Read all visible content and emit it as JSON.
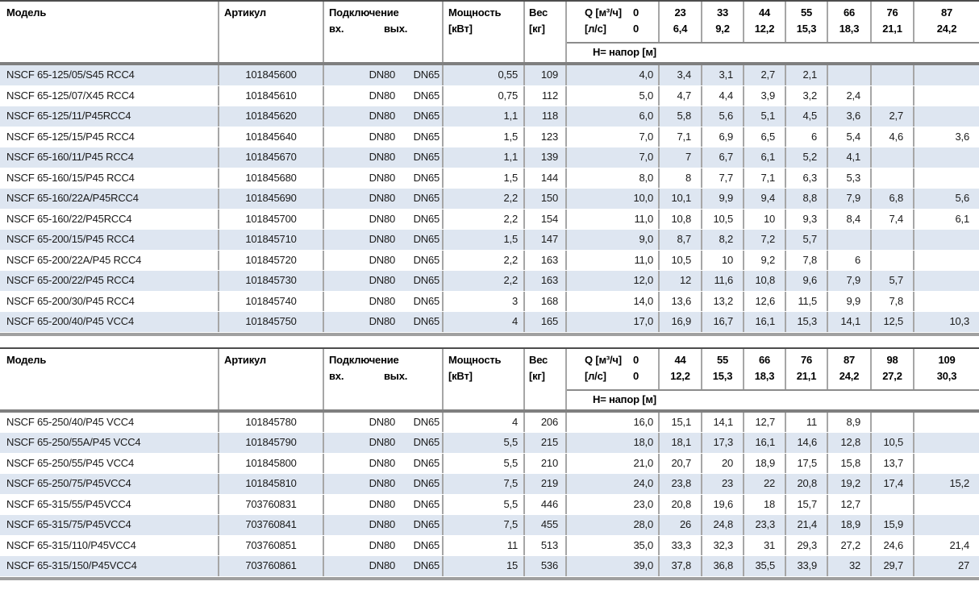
{
  "colors": {
    "row_alt_blue": "#dee6f1",
    "grid_line_gray": "#a6a6a6",
    "header_top_border": "#4d4d4d",
    "header_bottom_border": "#7f7f7f",
    "table_bottom_border": "#a0a0a0"
  },
  "tables": [
    {
      "headers": {
        "model": "Модель",
        "article": "Артикул",
        "connection": "Подключение",
        "conn_in": "вх.",
        "conn_out": "вых.",
        "power_line1": "Мощность",
        "power_line2": "[кВт]",
        "weight_line1": "Вес",
        "weight_line2": "[кг]",
        "q_line1_label": "Q [м³/ч]",
        "q_line1_value": "0",
        "q_line2_label": "[л/с]",
        "q_line2_value": "0",
        "head_label": "Н= напор [м]",
        "q_m3h": [
          "23",
          "33",
          "44",
          "55",
          "66",
          "76",
          "87"
        ],
        "q_ls": [
          "6,4",
          "9,2",
          "12,2",
          "15,3",
          "18,3",
          "21,1",
          "24,2"
        ]
      },
      "rows": [
        {
          "model": "NSCF 65-125/05/S45 RCC4",
          "article": "101845600",
          "conn_in": "DN80",
          "conn_out": "DN65",
          "power": "0,55",
          "weight": "109",
          "h": [
            "4,0",
            "3,4",
            "3,1",
            "2,7",
            "2,1",
            "",
            "",
            ""
          ]
        },
        {
          "model": "NSCF 65-125/07/X45 RCC4",
          "article": "101845610",
          "conn_in": "DN80",
          "conn_out": "DN65",
          "power": "0,75",
          "weight": "112",
          "h": [
            "5,0",
            "4,7",
            "4,4",
            "3,9",
            "3,2",
            "2,4",
            "",
            ""
          ]
        },
        {
          "model": "NSCF 65-125/11/P45RCC4",
          "article": "101845620",
          "conn_in": "DN80",
          "conn_out": "DN65",
          "power": "1,1",
          "weight": "118",
          "h": [
            "6,0",
            "5,8",
            "5,6",
            "5,1",
            "4,5",
            "3,6",
            "2,7",
            ""
          ]
        },
        {
          "model": "NSCF 65-125/15/P45 RCC4",
          "article": "101845640",
          "conn_in": "DN80",
          "conn_out": "DN65",
          "power": "1,5",
          "weight": "123",
          "h": [
            "7,0",
            "7,1",
            "6,9",
            "6,5",
            "6",
            "5,4",
            "4,6",
            "3,6"
          ]
        },
        {
          "model": "NSCF 65-160/11/P45 RCC4",
          "article": "101845670",
          "conn_in": "DN80",
          "conn_out": "DN65",
          "power": "1,1",
          "weight": "139",
          "h": [
            "7,0",
            "7",
            "6,7",
            "6,1",
            "5,2",
            "4,1",
            "",
            ""
          ]
        },
        {
          "model": "NSCF 65-160/15/P45 RCC4",
          "article": "101845680",
          "conn_in": "DN80",
          "conn_out": "DN65",
          "power": "1,5",
          "weight": "144",
          "h": [
            "8,0",
            "8",
            "7,7",
            "7,1",
            "6,3",
            "5,3",
            "",
            ""
          ]
        },
        {
          "model": "NSCF 65-160/22A/P45RCC4",
          "article": "101845690",
          "conn_in": "DN80",
          "conn_out": "DN65",
          "power": "2,2",
          "weight": "150",
          "h": [
            "10,0",
            "10,1",
            "9,9",
            "9,4",
            "8,8",
            "7,9",
            "6,8",
            "5,6"
          ]
        },
        {
          "model": "NSCF 65-160/22/P45RCC4",
          "article": "101845700",
          "conn_in": "DN80",
          "conn_out": "DN65",
          "power": "2,2",
          "weight": "154",
          "h": [
            "11,0",
            "10,8",
            "10,5",
            "10",
            "9,3",
            "8,4",
            "7,4",
            "6,1"
          ]
        },
        {
          "model": "NSCF 65-200/15/P45 RCC4",
          "article": "101845710",
          "conn_in": "DN80",
          "conn_out": "DN65",
          "power": "1,5",
          "weight": "147",
          "h": [
            "9,0",
            "8,7",
            "8,2",
            "7,2",
            "5,7",
            "",
            "",
            ""
          ]
        },
        {
          "model": "NSCF 65-200/22A/P45 RCC4",
          "article": "101845720",
          "conn_in": "DN80",
          "conn_out": "DN65",
          "power": "2,2",
          "weight": "163",
          "h": [
            "11,0",
            "10,5",
            "10",
            "9,2",
            "7,8",
            "6",
            "",
            ""
          ]
        },
        {
          "model": "NSCF 65-200/22/P45 RCC4",
          "article": "101845730",
          "conn_in": "DN80",
          "conn_out": "DN65",
          "power": "2,2",
          "weight": "163",
          "h": [
            "12,0",
            "12",
            "11,6",
            "10,8",
            "9,6",
            "7,9",
            "5,7",
            ""
          ]
        },
        {
          "model": "NSCF 65-200/30/P45 RCC4",
          "article": "101845740",
          "conn_in": "DN80",
          "conn_out": "DN65",
          "power": "3",
          "weight": "168",
          "h": [
            "14,0",
            "13,6",
            "13,2",
            "12,6",
            "11,5",
            "9,9",
            "7,8",
            ""
          ]
        },
        {
          "model": "NSCF 65-200/40/P45 VCC4",
          "article": "101845750",
          "conn_in": "DN80",
          "conn_out": "DN65",
          "power": "4",
          "weight": "165",
          "h": [
            "17,0",
            "16,9",
            "16,7",
            "16,1",
            "15,3",
            "14,1",
            "12,5",
            "10,3"
          ]
        }
      ]
    },
    {
      "headers": {
        "model": "Модель",
        "article": "Артикул",
        "connection": "Подключение",
        "conn_in": "вх.",
        "conn_out": "вых.",
        "power_line1": "Мощность",
        "power_line2": "[кВт]",
        "weight_line1": "Вес",
        "weight_line2": "[кг]",
        "q_line1_label": "Q [м³/ч]",
        "q_line1_value": "0",
        "q_line2_label": "[л/с]",
        "q_line2_value": "0",
        "head_label": "Н= напор [м]",
        "q_m3h": [
          "44",
          "55",
          "66",
          "76",
          "87",
          "98",
          "109"
        ],
        "q_ls": [
          "12,2",
          "15,3",
          "18,3",
          "21,1",
          "24,2",
          "27,2",
          "30,3"
        ]
      },
      "rows": [
        {
          "model": "NSCF 65-250/40/P45 VCC4",
          "article": "101845780",
          "conn_in": "DN80",
          "conn_out": "DN65",
          "power": "4",
          "weight": "206",
          "h": [
            "16,0",
            "15,1",
            "14,1",
            "12,7",
            "11",
            "8,9",
            "",
            ""
          ]
        },
        {
          "model": "NSCF 65-250/55A/P45 VCC4",
          "article": "101845790",
          "conn_in": "DN80",
          "conn_out": "DN65",
          "power": "5,5",
          "weight": "215",
          "h": [
            "18,0",
            "18,1",
            "17,3",
            "16,1",
            "14,6",
            "12,8",
            "10,5",
            ""
          ]
        },
        {
          "model": "NSCF 65-250/55/P45 VCC4",
          "article": "101845800",
          "conn_in": "DN80",
          "conn_out": "DN65",
          "power": "5,5",
          "weight": "210",
          "h": [
            "21,0",
            "20,7",
            "20",
            "18,9",
            "17,5",
            "15,8",
            "13,7",
            ""
          ]
        },
        {
          "model": "NSCF 65-250/75/P45VCC4",
          "article": "101845810",
          "conn_in": "DN80",
          "conn_out": "DN65",
          "power": "7,5",
          "weight": "219",
          "h": [
            "24,0",
            "23,8",
            "23",
            "22",
            "20,8",
            "19,2",
            "17,4",
            "15,2"
          ]
        },
        {
          "model": "NSCF 65-315/55/P45VCC4",
          "article": "703760831",
          "conn_in": "DN80",
          "conn_out": "DN65",
          "power": "5,5",
          "weight": "446",
          "h": [
            "23,0",
            "20,8",
            "19,6",
            "18",
            "15,7",
            "12,7",
            "",
            ""
          ]
        },
        {
          "model": "NSCF 65-315/75/P45VCC4",
          "article": "703760841",
          "conn_in": "DN80",
          "conn_out": "DN65",
          "power": "7,5",
          "weight": "455",
          "h": [
            "28,0",
            "26",
            "24,8",
            "23,3",
            "21,4",
            "18,9",
            "15,9",
            ""
          ]
        },
        {
          "model": "NSCF 65-315/110/P45VCC4",
          "article": "703760851",
          "conn_in": "DN80",
          "conn_out": "DN65",
          "power": "11",
          "weight": "513",
          "h": [
            "35,0",
            "33,3",
            "32,3",
            "31",
            "29,3",
            "27,2",
            "24,6",
            "21,4"
          ]
        },
        {
          "model": "NSCF 65-315/150/P45VCC4",
          "article": "703760861",
          "conn_in": "DN80",
          "conn_out": "DN65",
          "power": "15",
          "weight": "536",
          "h": [
            "39,0",
            "37,8",
            "36,8",
            "35,5",
            "33,9",
            "32",
            "29,7",
            "27"
          ]
        }
      ]
    }
  ]
}
